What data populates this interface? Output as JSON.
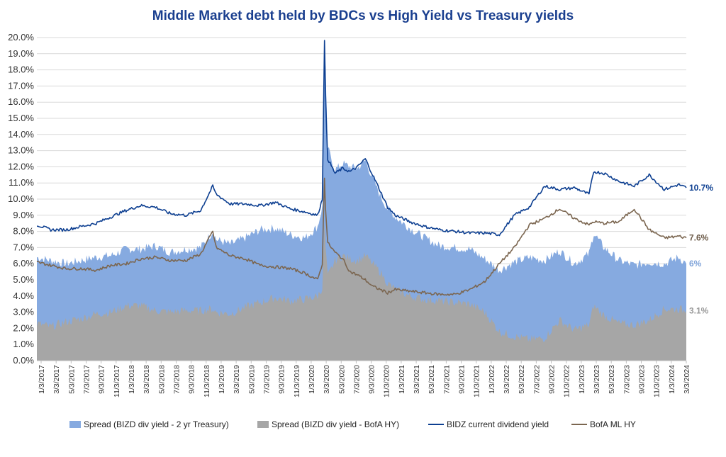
{
  "chart_data": {
    "type": "area",
    "title": "Middle Market debt held by BDCs vs High Yield vs Treasury yields",
    "ylim": [
      0,
      20
    ],
    "y_tick_labels": [
      "0.0%",
      "1.0%",
      "2.0%",
      "3.0%",
      "4.0%",
      "5.0%",
      "6.0%",
      "7.0%",
      "8.0%",
      "9.0%",
      "10.0%",
      "11.0%",
      "12.0%",
      "13.0%",
      "14.0%",
      "15.0%",
      "16.0%",
      "17.0%",
      "18.0%",
      "19.0%",
      "20.0%"
    ],
    "x_tick_labels": [
      "1/3/2017",
      "3/3/2017",
      "5/3/2017",
      "7/3/2017",
      "9/3/2017",
      "11/3/2017",
      "1/3/2018",
      "3/3/2018",
      "5/3/2018",
      "7/3/2018",
      "9/3/2018",
      "11/3/2018",
      "1/3/2019",
      "3/3/2019",
      "5/3/2019",
      "7/3/2019",
      "9/3/2019",
      "11/3/2019",
      "1/3/2020",
      "3/3/2020",
      "5/3/2020",
      "7/3/2020",
      "9/3/2020",
      "11/3/2020",
      "1/3/2021",
      "3/3/2021",
      "5/3/2021",
      "7/3/2021",
      "9/3/2021",
      "11/3/2021",
      "1/3/2022",
      "3/3/2022",
      "5/3/2022",
      "7/3/2022",
      "9/3/2022",
      "11/3/2022",
      "1/3/2023",
      "3/3/2023",
      "5/3/2023",
      "7/3/2023",
      "9/3/2023",
      "11/3/2023",
      "1/3/2024",
      "3/3/2024"
    ],
    "x_start": "2017-01-03",
    "x_end": "2024-03-31",
    "series": [
      {
        "name": "Spread (BIZD div yield - 2 yr Treasury)",
        "kind": "area",
        "color": "#86aae0",
        "x": [
          "2017-01-03",
          "2017-03-01",
          "2017-05-01",
          "2017-07-01",
          "2017-09-01",
          "2017-11-01",
          "2018-01-01",
          "2018-03-01",
          "2018-05-01",
          "2018-07-01",
          "2018-09-01",
          "2018-11-01",
          "2018-12-20",
          "2019-01-03",
          "2019-03-01",
          "2019-05-01",
          "2019-07-01",
          "2019-09-01",
          "2019-11-01",
          "2020-01-01",
          "2020-02-20",
          "2020-03-10",
          "2020-03-19",
          "2020-03-23",
          "2020-04-01",
          "2020-05-01",
          "2020-06-01",
          "2020-07-01",
          "2020-08-01",
          "2020-09-01",
          "2020-10-01",
          "2020-11-01",
          "2020-12-01",
          "2021-01-01",
          "2021-03-01",
          "2021-05-01",
          "2021-07-01",
          "2021-09-01",
          "2021-11-01",
          "2022-01-01",
          "2022-03-01",
          "2022-05-01",
          "2022-07-01",
          "2022-09-01",
          "2022-11-01",
          "2023-01-01",
          "2023-03-01",
          "2023-03-20",
          "2023-05-01",
          "2023-07-01",
          "2023-09-01",
          "2023-11-01",
          "2024-01-01",
          "2024-03-01",
          "2024-03-31"
        ],
        "values": [
          6.4,
          6.2,
          6.0,
          6.2,
          6.4,
          6.5,
          6.9,
          6.9,
          7.1,
          6.7,
          6.9,
          7.0,
          8.0,
          7.5,
          7.2,
          7.6,
          8.1,
          8.2,
          7.8,
          7.6,
          8.3,
          9.5,
          19.8,
          18.0,
          13.2,
          11.8,
          12.2,
          12.0,
          11.9,
          12.4,
          11.3,
          10.2,
          9.4,
          8.9,
          8.2,
          7.6,
          7.1,
          7.0,
          6.9,
          6.3,
          5.6,
          6.1,
          6.4,
          6.2,
          6.8,
          6.0,
          6.6,
          7.9,
          7.0,
          6.2,
          5.9,
          6.1,
          6.0,
          6.4,
          6.0
        ]
      },
      {
        "name": "Spread (BIZD div yield - BofA HY)",
        "kind": "area",
        "color": "#a6a6a6",
        "x": [
          "2017-01-03",
          "2017-03-01",
          "2017-05-01",
          "2017-07-01",
          "2017-09-01",
          "2017-11-01",
          "2018-01-01",
          "2018-03-01",
          "2018-05-01",
          "2018-07-01",
          "2018-09-01",
          "2018-11-01",
          "2018-12-20",
          "2019-01-03",
          "2019-03-01",
          "2019-05-01",
          "2019-07-01",
          "2019-09-01",
          "2019-11-01",
          "2020-01-01",
          "2020-02-20",
          "2020-03-10",
          "2020-03-19",
          "2020-03-23",
          "2020-04-01",
          "2020-05-01",
          "2020-06-01",
          "2020-07-01",
          "2020-08-01",
          "2020-09-01",
          "2020-10-01",
          "2020-11-01",
          "2020-12-01",
          "2021-01-01",
          "2021-03-01",
          "2021-05-01",
          "2021-07-01",
          "2021-09-01",
          "2021-11-01",
          "2022-01-01",
          "2022-03-01",
          "2022-05-01",
          "2022-07-01",
          "2022-09-01",
          "2022-11-01",
          "2023-01-01",
          "2023-03-01",
          "2023-03-20",
          "2023-05-01",
          "2023-07-01",
          "2023-09-01",
          "2023-11-01",
          "2024-01-01",
          "2024-03-01",
          "2024-03-31"
        ],
        "values": [
          2.3,
          2.1,
          2.4,
          2.6,
          2.9,
          3.0,
          3.4,
          3.4,
          3.1,
          3.0,
          3.1,
          3.1,
          3.2,
          3.0,
          2.9,
          3.3,
          3.6,
          3.9,
          3.7,
          3.8,
          4.0,
          4.5,
          8.5,
          7.0,
          5.2,
          6.2,
          6.5,
          6.3,
          6.2,
          6.5,
          6.0,
          5.5,
          4.8,
          4.4,
          4.0,
          3.8,
          3.7,
          3.6,
          3.5,
          3.0,
          1.8,
          1.5,
          1.3,
          1.4,
          2.5,
          1.9,
          2.2,
          3.4,
          2.8,
          2.3,
          2.2,
          2.5,
          3.2,
          3.2,
          3.1
        ]
      },
      {
        "name": "BIDZ current dividend yield",
        "kind": "line",
        "color": "#0d3f91",
        "x": [
          "2017-01-03",
          "2017-03-01",
          "2017-05-01",
          "2017-07-01",
          "2017-09-01",
          "2017-11-01",
          "2018-01-01",
          "2018-03-01",
          "2018-05-01",
          "2018-07-01",
          "2018-09-01",
          "2018-11-01",
          "2018-12-20",
          "2019-01-03",
          "2019-03-01",
          "2019-05-01",
          "2019-07-01",
          "2019-09-01",
          "2019-11-01",
          "2020-01-01",
          "2020-02-20",
          "2020-03-10",
          "2020-03-19",
          "2020-03-23",
          "2020-04-01",
          "2020-05-01",
          "2020-06-01",
          "2020-07-01",
          "2020-08-01",
          "2020-09-01",
          "2020-10-01",
          "2020-11-01",
          "2020-12-01",
          "2021-01-01",
          "2021-03-01",
          "2021-05-01",
          "2021-07-01",
          "2021-09-01",
          "2021-11-01",
          "2022-01-01",
          "2022-03-01",
          "2022-05-01",
          "2022-07-01",
          "2022-09-01",
          "2022-11-01",
          "2023-01-01",
          "2023-03-01",
          "2023-03-20",
          "2023-05-01",
          "2023-07-01",
          "2023-09-01",
          "2023-11-01",
          "2024-01-01",
          "2024-03-01",
          "2024-03-31"
        ],
        "values": [
          8.4,
          8.1,
          8.1,
          8.3,
          8.5,
          8.9,
          9.3,
          9.6,
          9.5,
          9.1,
          9.0,
          9.3,
          10.8,
          10.3,
          9.7,
          9.7,
          9.6,
          9.8,
          9.4,
          9.2,
          9.0,
          10.0,
          19.9,
          16.5,
          12.5,
          11.6,
          11.9,
          11.7,
          12.0,
          12.5,
          11.5,
          10.5,
          9.5,
          9.0,
          8.6,
          8.3,
          8.1,
          8.0,
          7.9,
          7.9,
          7.8,
          9.0,
          9.5,
          10.8,
          10.6,
          10.7,
          10.3,
          11.7,
          11.6,
          11.1,
          10.8,
          11.5,
          10.6,
          10.9,
          10.7
        ]
      },
      {
        "name": "BofA ML HY",
        "kind": "line",
        "color": "#7b6650",
        "x": [
          "2017-01-03",
          "2017-03-01",
          "2017-05-01",
          "2017-07-01",
          "2017-09-01",
          "2017-11-01",
          "2018-01-01",
          "2018-03-01",
          "2018-05-01",
          "2018-07-01",
          "2018-09-01",
          "2018-11-01",
          "2018-12-20",
          "2019-01-03",
          "2019-03-01",
          "2019-05-01",
          "2019-07-01",
          "2019-09-01",
          "2019-11-01",
          "2020-01-01",
          "2020-02-20",
          "2020-03-10",
          "2020-03-19",
          "2020-03-23",
          "2020-04-01",
          "2020-05-01",
          "2020-06-01",
          "2020-07-01",
          "2020-08-01",
          "2020-09-01",
          "2020-10-01",
          "2020-11-01",
          "2020-12-01",
          "2021-01-01",
          "2021-03-01",
          "2021-05-01",
          "2021-07-01",
          "2021-09-01",
          "2021-11-01",
          "2022-01-01",
          "2022-03-01",
          "2022-05-01",
          "2022-07-01",
          "2022-09-01",
          "2022-11-01",
          "2023-01-01",
          "2023-03-01",
          "2023-03-20",
          "2023-05-01",
          "2023-07-01",
          "2023-09-01",
          "2023-11-01",
          "2024-01-01",
          "2024-03-01",
          "2024-03-31"
        ],
        "values": [
          6.1,
          5.9,
          5.7,
          5.7,
          5.6,
          5.9,
          6.0,
          6.3,
          6.4,
          6.2,
          6.2,
          6.6,
          8.0,
          7.0,
          6.5,
          6.3,
          5.9,
          5.8,
          5.7,
          5.4,
          5.0,
          6.0,
          11.3,
          9.5,
          7.3,
          6.7,
          6.3,
          5.5,
          5.3,
          5.0,
          4.6,
          4.4,
          4.2,
          4.4,
          4.3,
          4.2,
          4.1,
          4.1,
          4.4,
          4.9,
          6.0,
          7.0,
          8.4,
          8.8,
          9.4,
          8.8,
          8.4,
          8.6,
          8.5,
          8.6,
          9.4,
          8.1,
          7.6,
          7.7,
          7.6
        ]
      }
    ],
    "end_labels": [
      {
        "text": "10.7%",
        "value": 10.7,
        "color": "#0d3f91"
      },
      {
        "text": "7.6%",
        "value": 7.6,
        "color": "#6b5a48"
      },
      {
        "text": "6%",
        "value": 6.0,
        "color": "#7fa3d9"
      },
      {
        "text": "3.1%",
        "value": 3.1,
        "color": "#999999"
      }
    ],
    "grid": true,
    "legend_position": "bottom"
  }
}
